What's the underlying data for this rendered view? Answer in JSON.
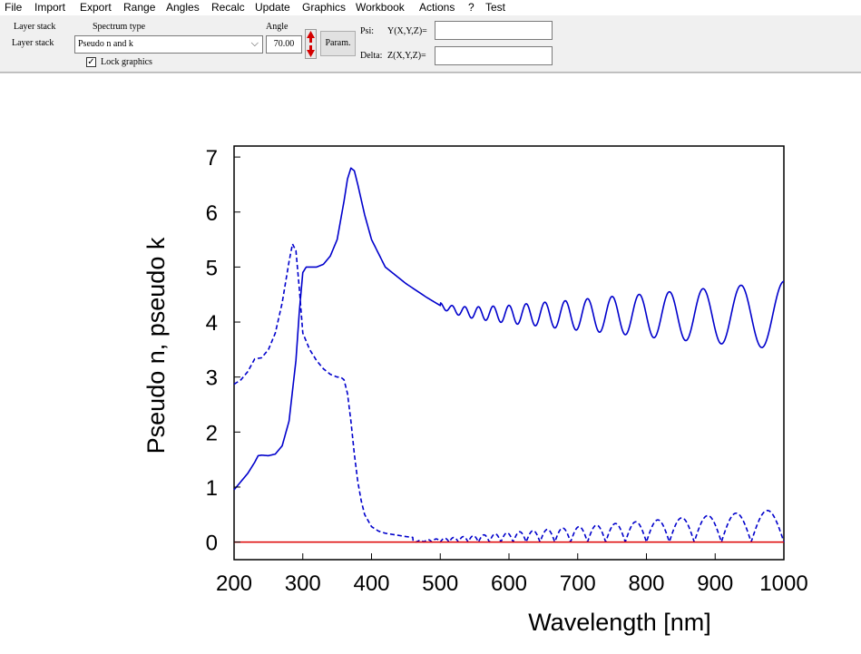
{
  "menu": [
    "File",
    "Import",
    "Export",
    "Range",
    "Angles",
    "Recalc",
    "Update",
    "Graphics",
    "Workbook",
    "Actions",
    "?",
    "Test"
  ],
  "toolbar": {
    "layer_stack_label1": "Layer stack",
    "layer_stack_label2": "Layer stack",
    "spectrum_type_label": "Spectrum type",
    "spectrum_type_value": "Pseudo n and k",
    "angle_label": "Angle",
    "angle_value": "70.00",
    "param_button": "Param.",
    "lock_graphics": "Lock graphics",
    "psi_label": "Psi:",
    "psi_expr": "Y(X,Y,Z)=",
    "delta_label": "Delta:",
    "delta_expr": "Z(X,Y,Z)=",
    "psi_value": "",
    "delta_value": ""
  },
  "chart_data": {
    "type": "line",
    "xlabel": "Wavelength [nm]",
    "ylabel": "Pseudo n, pseudo k",
    "xlim": [
      200,
      1000
    ],
    "ylim": [
      -0.32,
      7.2
    ],
    "xticks": [
      200,
      300,
      400,
      500,
      600,
      700,
      800,
      900,
      1000
    ],
    "yticks": [
      0,
      1,
      2,
      3,
      4,
      5,
      6,
      7
    ],
    "grid": false,
    "legend": "none",
    "colors": {
      "series": "#0000cc",
      "zero_line": "#dd0000"
    },
    "series": [
      {
        "style": "solid",
        "x": [
          200,
          210,
          220,
          230,
          235,
          240,
          250,
          260,
          270,
          280,
          290,
          295,
          300,
          305,
          310,
          320,
          330,
          340,
          350,
          360,
          365,
          370,
          375,
          380,
          390,
          400,
          420,
          450,
          480,
          500,
          520,
          540,
          560,
          580,
          600,
          640,
          680,
          720,
          760,
          800,
          850,
          900,
          950,
          1000
        ],
        "y": [
          0.95,
          1.1,
          1.25,
          1.45,
          1.57,
          1.58,
          1.57,
          1.6,
          1.75,
          2.2,
          3.3,
          4.2,
          4.9,
          5.0,
          5.0,
          5.0,
          5.05,
          5.2,
          5.5,
          6.2,
          6.6,
          6.8,
          6.75,
          6.5,
          5.95,
          5.5,
          5.0,
          4.7,
          4.45,
          4.3,
          4.22,
          4.18,
          4.16,
          4.15,
          4.14,
          4.14,
          4.13,
          4.13,
          4.13,
          4.12,
          4.12,
          4.12,
          4.12,
          4.12
        ],
        "osc_start": 500,
        "osc_amp_start": 0.05,
        "osc_amp_end": 0.62,
        "osc_p1": 30.0
      },
      {
        "style": "dashed",
        "x": [
          200,
          210,
          220,
          230,
          240,
          250,
          260,
          270,
          280,
          285,
          290,
          295,
          300,
          310,
          320,
          330,
          340,
          350,
          355,
          360,
          365,
          370,
          375,
          380,
          385,
          390,
          400,
          410,
          420,
          430,
          450,
          470,
          500,
          550,
          600,
          650,
          700,
          800,
          900,
          1000
        ],
        "y": [
          2.87,
          2.95,
          3.1,
          3.33,
          3.35,
          3.5,
          3.8,
          4.35,
          5.1,
          5.42,
          5.3,
          4.6,
          3.8,
          3.5,
          3.3,
          3.15,
          3.05,
          3.0,
          3.0,
          2.95,
          2.7,
          2.2,
          1.6,
          1.1,
          0.75,
          0.5,
          0.28,
          0.2,
          0.16,
          0.14,
          0.1,
          0.07,
          0.05,
          0.05,
          0.05,
          0.05,
          0.05,
          0.05,
          0.05,
          0.05
        ],
        "osc_start": 460,
        "osc_amp_start": 0.02,
        "osc_amp_end": 0.6,
        "osc_p1": 20.0,
        "rectify": true
      },
      {
        "style": "zero",
        "x": [
          200,
          1000
        ],
        "y": [
          0,
          0
        ]
      }
    ]
  }
}
